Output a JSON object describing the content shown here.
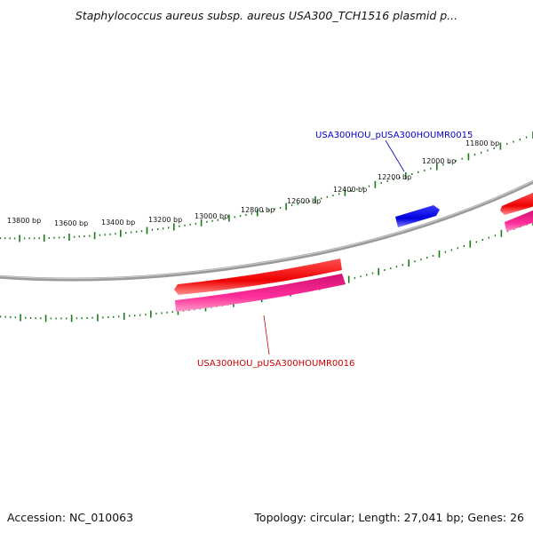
{
  "title": "Staphylococcus aureus subsp. aureus USA300_TCH1516 plasmid p...",
  "ruler_labels": [
    "11800 bp",
    "12000 bp",
    "12200 bp",
    "12400 bp",
    "12600 bp",
    "12800 bp",
    "13000 bp",
    "13200 bp",
    "13400 bp",
    "13600 bp",
    "13800 bp"
  ],
  "genes": [
    {
      "name": "USA300HOU_pUSA300HOUMR0015",
      "color": "#0000cc"
    },
    {
      "name": "USA300HOU_pUSA300HOUMR0016",
      "color": "#cc0000"
    }
  ],
  "footer": {
    "accession": "Accession: NC_010063",
    "summary": "Topology: circular; Length: 27,041 bp; Genes: 26"
  },
  "colors": {
    "backbone": "#888888",
    "ruler": "#1a7a1a",
    "forward_gene": "#ff0000",
    "reverse_gene": "#ff1493",
    "highlight_gene": "#0000ee"
  }
}
